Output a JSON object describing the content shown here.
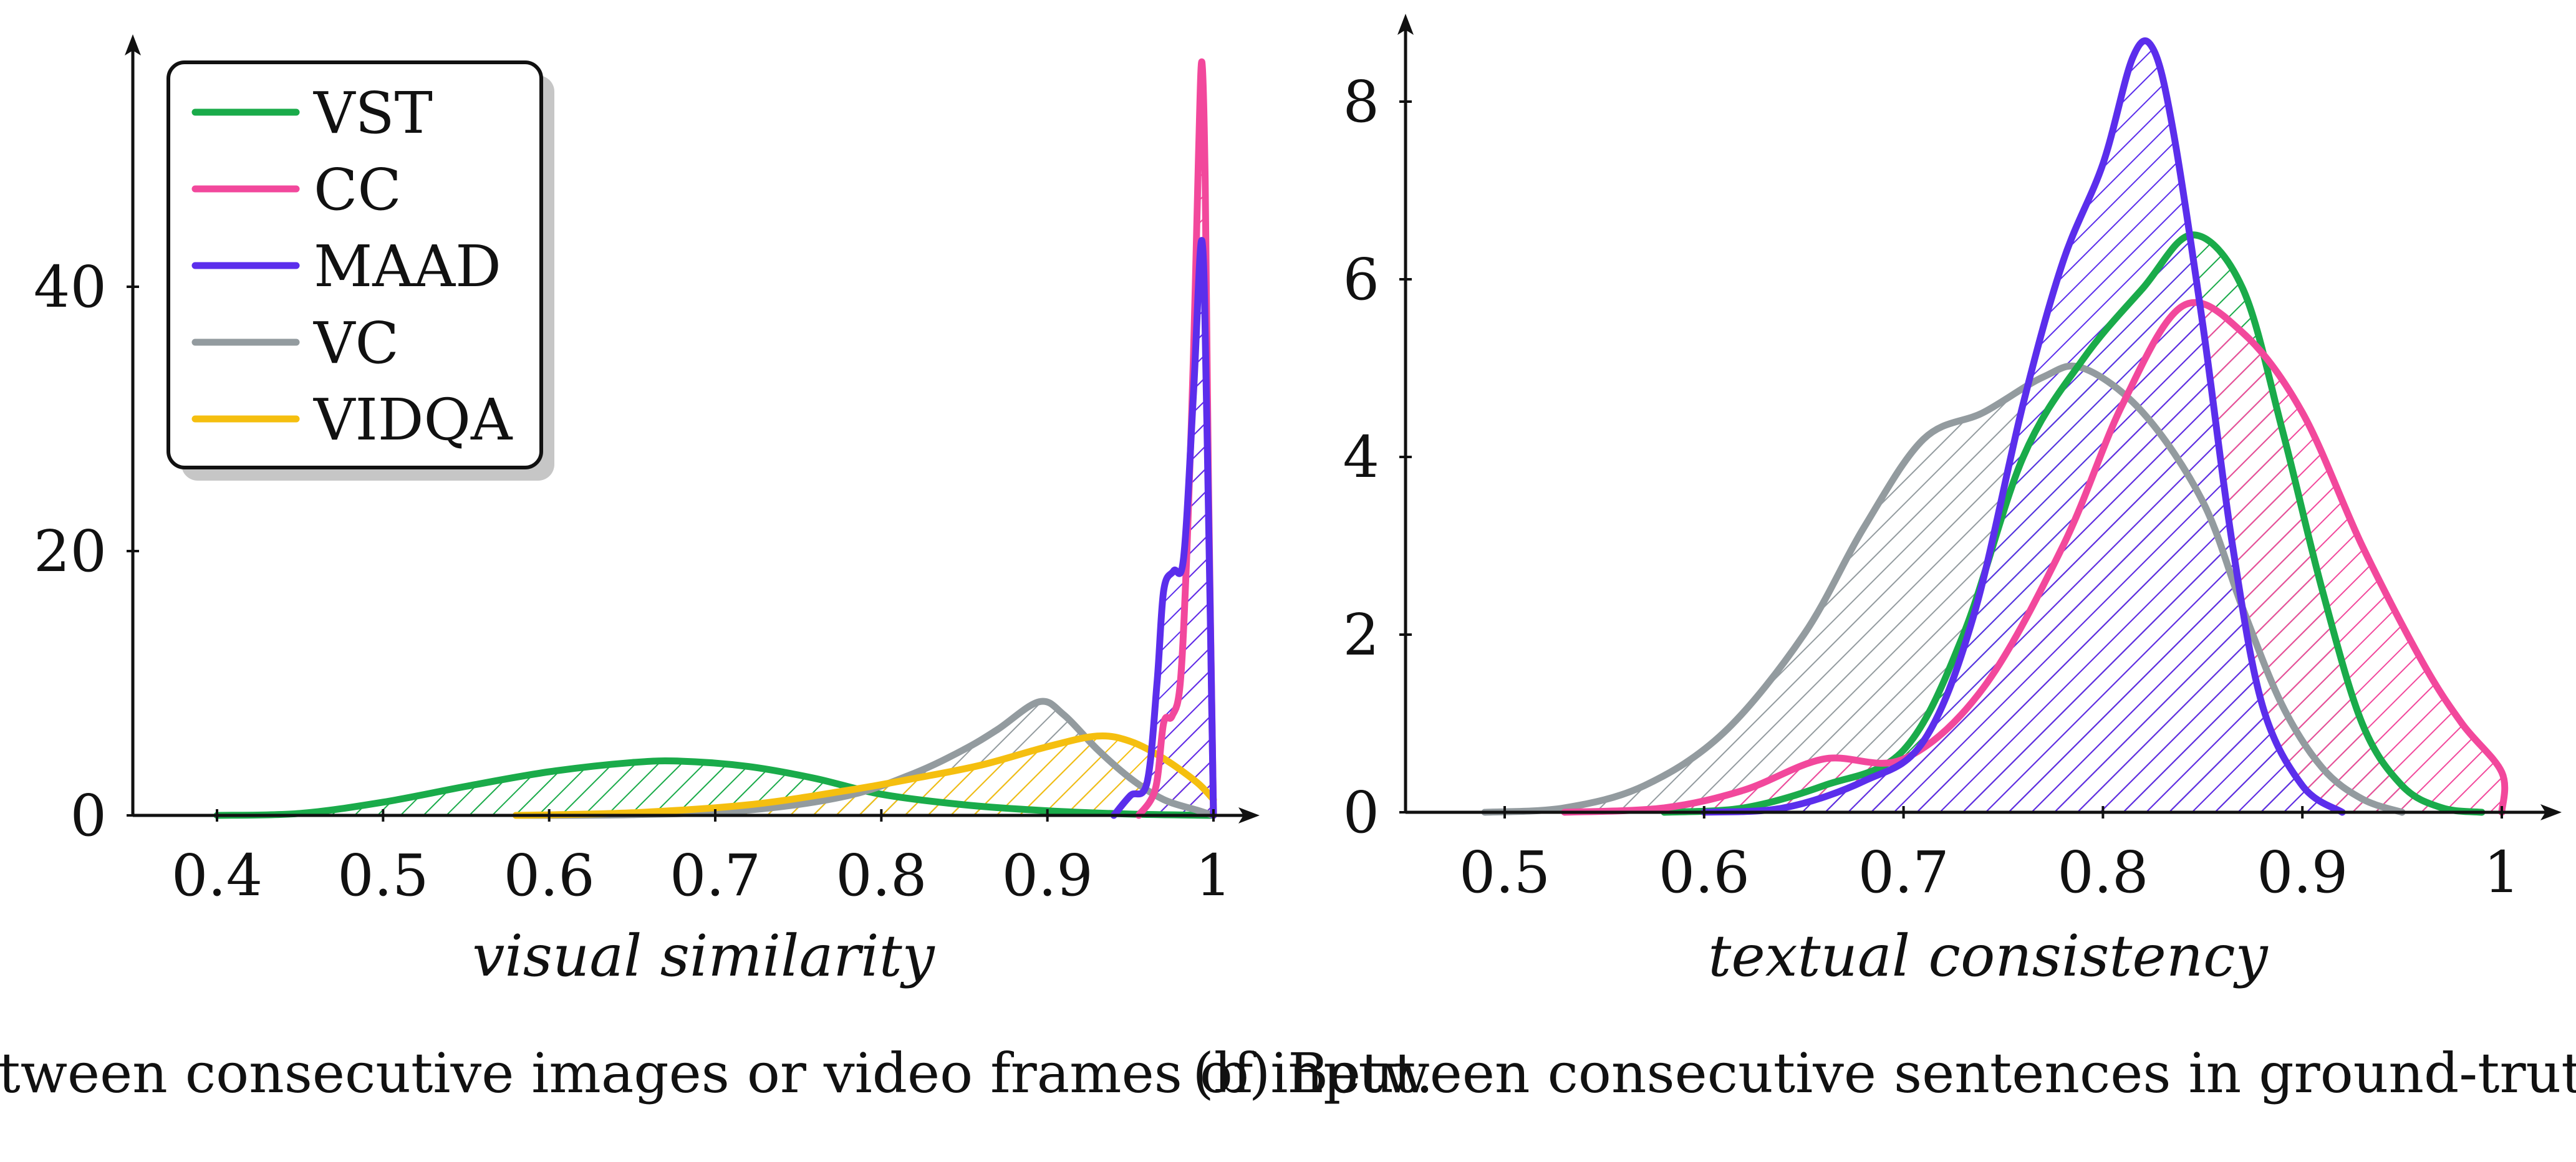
{
  "colors": {
    "VST": "#1aab4a",
    "CC": "#f2489c",
    "MAAD": "#5b2eec",
    "VC": "#939b9f",
    "VIDQA": "#f5bf0f"
  },
  "legend": {
    "placement": "top-left",
    "entries": [
      "VST",
      "CC",
      "MAAD",
      "VC",
      "VIDQA"
    ]
  },
  "chart_data": [
    {
      "type": "area",
      "caption": "(a) Between consecutive images or video frames of input.",
      "xlabel": "visual similarity",
      "ylabel": "",
      "xlim": [
        0.35,
        1.03
      ],
      "ylim": [
        0,
        58
      ],
      "xticks": [
        "0.4",
        "0.5",
        "0.6",
        "0.7",
        "0.8",
        "0.9",
        "1"
      ],
      "yticks": [
        "0",
        "20",
        "40"
      ],
      "grid": false,
      "series": [
        {
          "name": "VST",
          "fill": "hatched",
          "points": [
            [
              0.4,
              0
            ],
            [
              0.45,
              0.15
            ],
            [
              0.5,
              1.0
            ],
            [
              0.55,
              2.2
            ],
            [
              0.6,
              3.3
            ],
            [
              0.65,
              4.0
            ],
            [
              0.68,
              4.1
            ],
            [
              0.72,
              3.7
            ],
            [
              0.76,
              2.8
            ],
            [
              0.8,
              1.6
            ],
            [
              0.85,
              0.8
            ],
            [
              0.9,
              0.35
            ],
            [
              0.95,
              0.1
            ],
            [
              1.0,
              0
            ]
          ]
        },
        {
          "name": "VC",
          "fill": "hatched",
          "points": [
            [
              0.58,
              0
            ],
            [
              0.65,
              0.05
            ],
            [
              0.72,
              0.4
            ],
            [
              0.78,
              1.5
            ],
            [
              0.82,
              3.2
            ],
            [
              0.85,
              5.0
            ],
            [
              0.87,
              6.5
            ],
            [
              0.895,
              8.6
            ],
            [
              0.91,
              7.6
            ],
            [
              0.93,
              5.0
            ],
            [
              0.95,
              2.8
            ],
            [
              0.97,
              1.2
            ],
            [
              0.99,
              0.4
            ],
            [
              1.0,
              0
            ]
          ]
        },
        {
          "name": "VIDQA",
          "fill": "hatched",
          "points": [
            [
              0.58,
              0
            ],
            [
              0.65,
              0.2
            ],
            [
              0.72,
              0.8
            ],
            [
              0.78,
              1.9
            ],
            [
              0.82,
              2.8
            ],
            [
              0.86,
              3.8
            ],
            [
              0.9,
              5.2
            ],
            [
              0.93,
              6.0
            ],
            [
              0.95,
              5.6
            ],
            [
              0.97,
              4.3
            ],
            [
              0.99,
              2.5
            ],
            [
              1.0,
              1.2
            ]
          ]
        },
        {
          "name": "CC",
          "fill": "hatched",
          "points": [
            [
              0.955,
              0
            ],
            [
              0.965,
              2.0
            ],
            [
              0.97,
              7.0
            ],
            [
              0.975,
              7.5
            ],
            [
              0.98,
              10.0
            ],
            [
              0.984,
              20.0
            ],
            [
              0.988,
              35.0
            ],
            [
              0.991,
              50.0
            ],
            [
              0.993,
              57.0
            ],
            [
              0.995,
              48.0
            ],
            [
              0.997,
              25.0
            ],
            [
              1.0,
              0
            ]
          ]
        },
        {
          "name": "MAAD",
          "fill": "hatched",
          "points": [
            [
              0.94,
              0
            ],
            [
              0.95,
              1.5
            ],
            [
              0.96,
              2.5
            ],
            [
              0.966,
              10.0
            ],
            [
              0.97,
              17.0
            ],
            [
              0.976,
              18.5
            ],
            [
              0.982,
              19.5
            ],
            [
              0.988,
              32.0
            ],
            [
              0.993,
              43.5
            ],
            [
              0.996,
              30.0
            ],
            [
              1.0,
              0
            ]
          ]
        }
      ]
    },
    {
      "type": "area",
      "caption": "(b) Between consecutive sentences in ground-truth text.",
      "xlabel": "textual consistency",
      "ylabel": "",
      "xlim": [
        0.45,
        1.03
      ],
      "ylim": [
        0,
        9
      ],
      "xticks": [
        "0.5",
        "0.6",
        "0.7",
        "0.8",
        "0.9",
        "1"
      ],
      "yticks": [
        "0",
        "2",
        "4",
        "6",
        "8"
      ],
      "grid": false,
      "series": [
        {
          "name": "VC",
          "fill": "hatched",
          "points": [
            [
              0.49,
              0
            ],
            [
              0.53,
              0.05
            ],
            [
              0.57,
              0.3
            ],
            [
              0.61,
              0.9
            ],
            [
              0.65,
              2.0
            ],
            [
              0.68,
              3.2
            ],
            [
              0.71,
              4.2
            ],
            [
              0.74,
              4.5
            ],
            [
              0.77,
              4.9
            ],
            [
              0.79,
              5.0
            ],
            [
              0.82,
              4.5
            ],
            [
              0.85,
              3.5
            ],
            [
              0.87,
              2.3
            ],
            [
              0.89,
              1.2
            ],
            [
              0.91,
              0.5
            ],
            [
              0.93,
              0.15
            ],
            [
              0.95,
              0
            ]
          ]
        },
        {
          "name": "VST",
          "fill": "hatched",
          "points": [
            [
              0.58,
              0
            ],
            [
              0.62,
              0.05
            ],
            [
              0.66,
              0.3
            ],
            [
              0.7,
              0.7
            ],
            [
              0.73,
              2.0
            ],
            [
              0.76,
              4.0
            ],
            [
              0.79,
              5.1
            ],
            [
              0.82,
              5.9
            ],
            [
              0.845,
              6.5
            ],
            [
              0.87,
              5.9
            ],
            [
              0.89,
              4.3
            ],
            [
              0.91,
              2.5
            ],
            [
              0.93,
              1.0
            ],
            [
              0.95,
              0.3
            ],
            [
              0.97,
              0.05
            ],
            [
              0.99,
              0
            ]
          ]
        },
        {
          "name": "CC",
          "fill": "hatched",
          "points": [
            [
              0.53,
              0
            ],
            [
              0.58,
              0.05
            ],
            [
              0.62,
              0.25
            ],
            [
              0.66,
              0.6
            ],
            [
              0.7,
              0.6
            ],
            [
              0.74,
              1.4
            ],
            [
              0.78,
              3.0
            ],
            [
              0.81,
              4.6
            ],
            [
              0.84,
              5.7
            ],
            [
              0.87,
              5.4
            ],
            [
              0.9,
              4.5
            ],
            [
              0.93,
              3.0
            ],
            [
              0.96,
              1.7
            ],
            [
              0.98,
              1.0
            ],
            [
              1.0,
              0.45
            ],
            [
              1.0,
              0
            ]
          ]
        },
        {
          "name": "MAAD",
          "fill": "hatched",
          "points": [
            [
              0.6,
              0
            ],
            [
              0.64,
              0.05
            ],
            [
              0.68,
              0.35
            ],
            [
              0.71,
              0.8
            ],
            [
              0.735,
              2.2
            ],
            [
              0.76,
              4.6
            ],
            [
              0.78,
              6.2
            ],
            [
              0.8,
              7.3
            ],
            [
              0.815,
              8.5
            ],
            [
              0.825,
              8.6
            ],
            [
              0.835,
              7.7
            ],
            [
              0.85,
              5.5
            ],
            [
              0.865,
              3.0
            ],
            [
              0.88,
              1.2
            ],
            [
              0.9,
              0.3
            ],
            [
              0.92,
              0
            ]
          ]
        }
      ]
    }
  ]
}
